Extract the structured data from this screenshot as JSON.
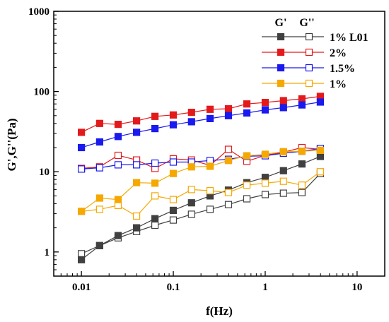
{
  "chart_data": {
    "type": "line",
    "xscale": "log",
    "yscale": "log",
    "xlim": [
      0.005,
      20
    ],
    "ylim": [
      0.5,
      1000
    ],
    "xlabel": "f(Hz)",
    "ylabel": "G',G''(Pa)",
    "x_tick_labels": [
      "0.01",
      "0.1",
      "1",
      "10"
    ],
    "x_tick_values": [
      0.01,
      0.1,
      1,
      10
    ],
    "y_tick_labels": [
      "1",
      "10",
      "100",
      "1000"
    ],
    "y_tick_values": [
      1,
      10,
      100,
      1000
    ],
    "grid": false,
    "legend": {
      "position": "top-right",
      "header_left": "G'",
      "header_right": "G''",
      "entries": [
        "1% L01",
        "2%",
        "1.5%",
        "1%"
      ]
    },
    "x": [
      0.01,
      0.0158,
      0.0251,
      0.0398,
      0.0631,
      0.1,
      0.158,
      0.251,
      0.398,
      0.631,
      1.0,
      1.58,
      2.51,
      3.98
    ],
    "series": [
      {
        "name": "1% L01",
        "color": "#404040",
        "g_prime": [
          0.8,
          1.2,
          1.6,
          2.0,
          2.6,
          3.3,
          4.1,
          5.0,
          5.9,
          7.3,
          8.5,
          10.3,
          12.5,
          15.5
        ],
        "g_double_prime": [
          0.95,
          1.2,
          1.5,
          1.8,
          2.15,
          2.5,
          2.95,
          3.4,
          3.9,
          4.6,
          5.2,
          5.4,
          5.5,
          9.5
        ]
      },
      {
        "name": "2%",
        "color": "#e31a1c",
        "g_prime": [
          31,
          40,
          39,
          43,
          49,
          51,
          55,
          60,
          61,
          70,
          73,
          77,
          81,
          87
        ],
        "g_double_prime": [
          11.0,
          11.5,
          16.0,
          14.0,
          11.0,
          14.5,
          14.0,
          12.0,
          19.0,
          13.5,
          16.0,
          17.5,
          20.0,
          19.0
        ]
      },
      {
        "name": "1.5%",
        "color": "#1a1aee",
        "g_prime": [
          20,
          23.5,
          27.5,
          31,
          34.5,
          38.5,
          42,
          46,
          50,
          54,
          59,
          63,
          68,
          74
        ],
        "g_double_prime": [
          10.8,
          11.2,
          12.2,
          12.2,
          12.8,
          13.2,
          13.2,
          13.8,
          14.3,
          15.6,
          15.8,
          17.0,
          18.0,
          19.5
        ]
      },
      {
        "name": "1%",
        "color": "#f5a800",
        "g_prime": [
          3.2,
          4.7,
          4.5,
          7.3,
          7.2,
          9.5,
          11.5,
          11.7,
          13.8,
          15.8,
          16.5,
          17.8,
          18.0,
          18.5
        ],
        "g_double_prime": [
          3.2,
          3.4,
          3.8,
          2.8,
          5.0,
          4.5,
          6.0,
          5.8,
          5.5,
          6.8,
          7.2,
          7.6,
          6.8,
          10.0
        ]
      }
    ]
  }
}
